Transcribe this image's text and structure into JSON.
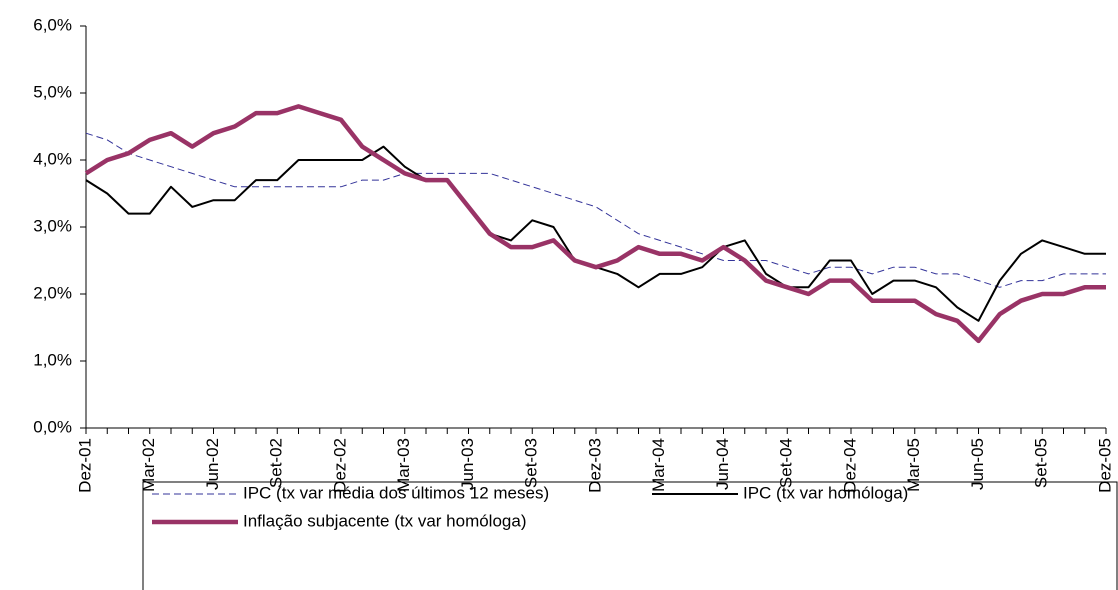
{
  "chart_data": {
    "type": "line",
    "categories": [
      "Dez-01",
      null,
      null,
      "Mar-02",
      null,
      null,
      "Jun-02",
      null,
      null,
      "Set-02",
      null,
      null,
      "Dez-02",
      null,
      null,
      "Mar-03",
      null,
      null,
      "Jun-03",
      null,
      null,
      "Set-03",
      null,
      null,
      "Dez-03",
      null,
      null,
      "Mar-04",
      null,
      null,
      "Jun-04",
      null,
      null,
      "Set-04",
      null,
      null,
      "Dez-04",
      null,
      null,
      "Mar-05",
      null,
      null,
      "Jun-05",
      null,
      null,
      "Set-05",
      null,
      null,
      "Dez-05"
    ],
    "series": [
      {
        "name": "IPC (tx var média dos últimos 12 meses)",
        "color": "#333399",
        "dash": true,
        "width": 1,
        "values": [
          4.4,
          4.3,
          4.1,
          4.0,
          3.9,
          3.8,
          3.7,
          3.6,
          3.6,
          3.6,
          3.6,
          3.6,
          3.6,
          3.7,
          3.7,
          3.8,
          3.8,
          3.8,
          3.8,
          3.8,
          3.7,
          3.6,
          3.5,
          3.4,
          3.3,
          3.1,
          2.9,
          2.8,
          2.7,
          2.6,
          2.5,
          2.5,
          2.5,
          2.4,
          2.3,
          2.4,
          2.4,
          2.3,
          2.4,
          2.4,
          2.3,
          2.3,
          2.2,
          2.1,
          2.2,
          2.2,
          2.3,
          2.3,
          2.3
        ]
      },
      {
        "name": "IPC (tx var homóloga)",
        "color": "#000000",
        "dash": false,
        "width": 2,
        "values": [
          3.7,
          3.5,
          3.2,
          3.2,
          3.6,
          3.3,
          3.4,
          3.4,
          3.7,
          3.7,
          4.0,
          4.0,
          4.0,
          4.0,
          4.2,
          3.9,
          3.7,
          3.7,
          3.3,
          2.9,
          2.8,
          3.1,
          3.0,
          2.5,
          2.4,
          2.3,
          2.1,
          2.3,
          2.3,
          2.4,
          2.7,
          2.8,
          2.3,
          2.1,
          2.1,
          2.5,
          2.5,
          2.0,
          2.2,
          2.2,
          2.1,
          1.8,
          1.6,
          2.2,
          2.6,
          2.8,
          2.7,
          2.6,
          2.6
        ]
      },
      {
        "name": "Inflação subjacente (tx var homóloga)",
        "color": "#993366",
        "dash": false,
        "width": 4.5,
        "values": [
          3.8,
          4.0,
          4.1,
          4.3,
          4.4,
          4.2,
          4.4,
          4.5,
          4.7,
          4.7,
          4.8,
          4.7,
          4.6,
          4.2,
          4.0,
          3.8,
          3.7,
          3.7,
          3.3,
          2.9,
          2.7,
          2.7,
          2.8,
          2.5,
          2.4,
          2.5,
          2.7,
          2.6,
          2.6,
          2.5,
          2.7,
          2.5,
          2.2,
          2.1,
          2.0,
          2.2,
          2.2,
          1.9,
          1.9,
          1.9,
          1.7,
          1.6,
          1.3,
          1.7,
          1.9,
          2.0,
          2.0,
          2.1,
          2.1
        ]
      }
    ],
    "ylim": [
      0,
      6
    ],
    "yticks": [
      {
        "value": 0,
        "label": "0,0%"
      },
      {
        "value": 1,
        "label": "1,0%"
      },
      {
        "value": 2,
        "label": "2,0%"
      },
      {
        "value": 3,
        "label": "3,0%"
      },
      {
        "value": 4,
        "label": "4,0%"
      },
      {
        "value": 5,
        "label": "5,0%"
      },
      {
        "value": 6,
        "label": "6,0%"
      }
    ],
    "grid": false,
    "legend": "bottom"
  }
}
